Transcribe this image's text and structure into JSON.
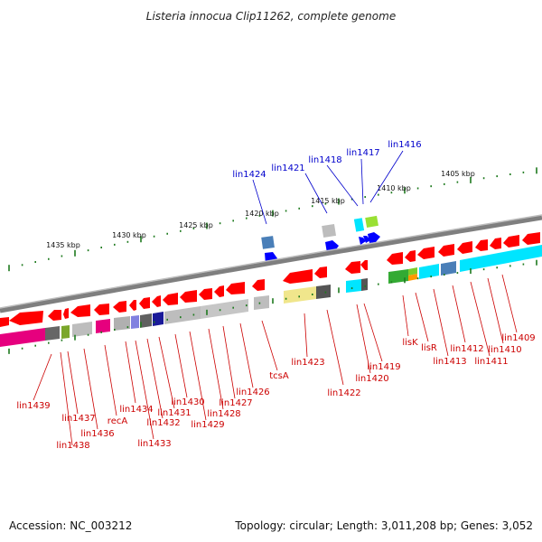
{
  "title": "Listeria innocua Clip11262, complete genome",
  "footer": {
    "accession": "Accession: NC_003212",
    "summary": "Topology: circular; Length: 3,011,208 bp; Genes: 3,052"
  },
  "colors": {
    "forward_label": "#0000cc",
    "reverse_label": "#cc0000",
    "backbone": "#7a7a7a",
    "tick": "#1e7a1e",
    "cds": "#ff0000",
    "rna": "#0000ff"
  },
  "kbp_labels": [
    "1435 kbp",
    "1430 kbp",
    "1425 kbp",
    "1420 kbp",
    "1415 kbp",
    "1410 kbp",
    "1405 kbp"
  ],
  "forward_labels": [
    "lin1424",
    "lin1421",
    "lin1418",
    "lin1417",
    "lin1416"
  ],
  "reverse_labels": [
    "lin1439",
    "lin1437",
    "lin1438",
    "lin1436",
    "recA",
    "lin1434",
    "lin1433",
    "lin1432",
    "lin1431",
    "lin1430",
    "lin1429",
    "lin1428",
    "lin1427",
    "lin1426",
    "tcsA",
    "lin1423",
    "lin1422",
    "lin1420",
    "lin1419",
    "lisK",
    "lisR",
    "lin1413",
    "lin1412",
    "lin1411",
    "lin1410",
    "lin1409"
  ]
}
